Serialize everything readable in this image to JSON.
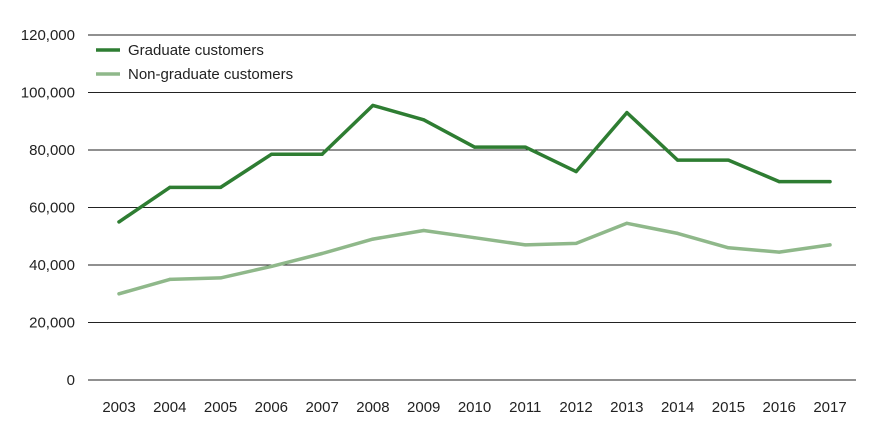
{
  "chart_data": {
    "type": "line",
    "title": "",
    "xlabel": "",
    "ylabel": "",
    "categories": [
      "2003",
      "2004",
      "2005",
      "2006",
      "2007",
      "2008",
      "2009",
      "2010",
      "2011",
      "2012",
      "2013",
      "2014",
      "2015",
      "2016",
      "2017"
    ],
    "ylim": [
      0,
      120000
    ],
    "yticks": [
      0,
      20000,
      40000,
      60000,
      80000,
      100000,
      120000
    ],
    "ytick_labels": [
      "0",
      "20,000",
      "40,000",
      "60,000",
      "80,000",
      "100,000",
      "120,000"
    ],
    "grid": true,
    "legend_position": "top-left",
    "series": [
      {
        "name": "Graduate customers",
        "color": "#2e7d32",
        "values": [
          55000,
          67000,
          67000,
          78500,
          78500,
          95500,
          90500,
          81000,
          81000,
          72500,
          93000,
          76500,
          76500,
          69000,
          69000
        ]
      },
      {
        "name": "Non-graduate customers",
        "color": "#8fb88a",
        "values": [
          30000,
          35000,
          35500,
          39500,
          44000,
          49000,
          52000,
          49500,
          47000,
          47500,
          54500,
          51000,
          46000,
          44500,
          47000
        ]
      }
    ]
  }
}
